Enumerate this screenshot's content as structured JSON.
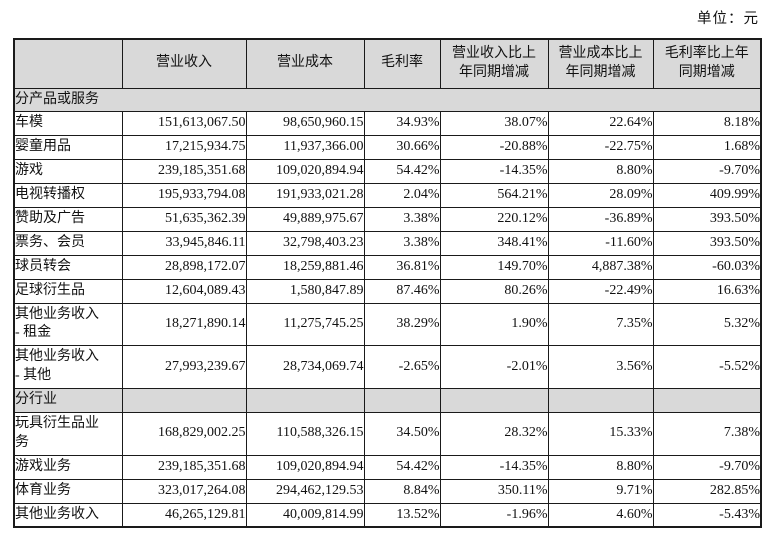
{
  "unit_label": "单位：元",
  "colors": {
    "header_bg": "#d9d9d9",
    "table_border": "#1a1a1a",
    "text": "#111111",
    "page_bg": "#ffffff"
  },
  "table": {
    "columns": [
      "",
      "营业收入",
      "营业成本",
      "毛利率",
      "营业收入比上\n年同期增减",
      "营业成本比上\n年同期增减",
      "毛利率比上年\n同期增减"
    ],
    "sections": [
      {
        "header": "分产品或服务",
        "merged": true,
        "rows": [
          {
            "label": "车模",
            "cells": [
              "151,613,067.50",
              "98,650,960.15",
              "34.93%",
              "38.07%",
              "22.64%",
              "8.18%"
            ],
            "tall": false
          },
          {
            "label": "婴童用品",
            "cells": [
              "17,215,934.75",
              "11,937,366.00",
              "30.66%",
              "-20.88%",
              "-22.75%",
              "1.68%"
            ],
            "tall": false
          },
          {
            "label": "游戏",
            "cells": [
              "239,185,351.68",
              "109,020,894.94",
              "54.42%",
              "-14.35%",
              "8.80%",
              "-9.70%"
            ],
            "tall": false
          },
          {
            "label": "电视转播权",
            "cells": [
              "195,933,794.08",
              "191,933,021.28",
              "2.04%",
              "564.21%",
              "28.09%",
              "409.99%"
            ],
            "tall": false
          },
          {
            "label": "赞助及广告",
            "cells": [
              "51,635,362.39",
              "49,889,975.67",
              "3.38%",
              "220.12%",
              "-36.89%",
              "393.50%"
            ],
            "tall": false
          },
          {
            "label": "票务、会员",
            "cells": [
              "33,945,846.11",
              "32,798,403.23",
              "3.38%",
              "348.41%",
              "-11.60%",
              "393.50%"
            ],
            "tall": false
          },
          {
            "label": "球员转会",
            "cells": [
              "28,898,172.07",
              "18,259,881.46",
              "36.81%",
              "149.70%",
              "4,887.38%",
              "-60.03%"
            ],
            "tall": false
          },
          {
            "label": "足球衍生品",
            "cells": [
              "12,604,089.43",
              "1,580,847.89",
              "87.46%",
              "80.26%",
              "-22.49%",
              "16.63%"
            ],
            "tall": false
          },
          {
            "label": "其他业务收入\n- 租金",
            "cells": [
              "18,271,890.14",
              "11,275,745.25",
              "38.29%",
              "1.90%",
              "7.35%",
              "5.32%"
            ],
            "tall": true
          },
          {
            "label": "其他业务收入\n- 其他",
            "cells": [
              "27,993,239.67",
              "28,734,069.74",
              "-2.65%",
              "-2.01%",
              "3.56%",
              "-5.52%"
            ],
            "tall": true
          }
        ]
      },
      {
        "header": "分行业",
        "merged": false,
        "rows": [
          {
            "label": "玩具衍生品业\n务",
            "cells": [
              "168,829,002.25",
              "110,588,326.15",
              "34.50%",
              "28.32%",
              "15.33%",
              "7.38%"
            ],
            "tall": true
          },
          {
            "label": "游戏业务",
            "cells": [
              "239,185,351.68",
              "109,020,894.94",
              "54.42%",
              "-14.35%",
              "8.80%",
              "-9.70%"
            ],
            "tall": false
          },
          {
            "label": "体育业务",
            "cells": [
              "323,017,264.08",
              "294,462,129.53",
              "8.84%",
              "350.11%",
              "9.71%",
              "282.85%"
            ],
            "tall": false
          },
          {
            "label": "其他业务收入",
            "cells": [
              "46,265,129.81",
              "40,009,814.99",
              "13.52%",
              "-1.96%",
              "4.60%",
              "-5.43%"
            ],
            "tall": false
          }
        ]
      }
    ]
  }
}
